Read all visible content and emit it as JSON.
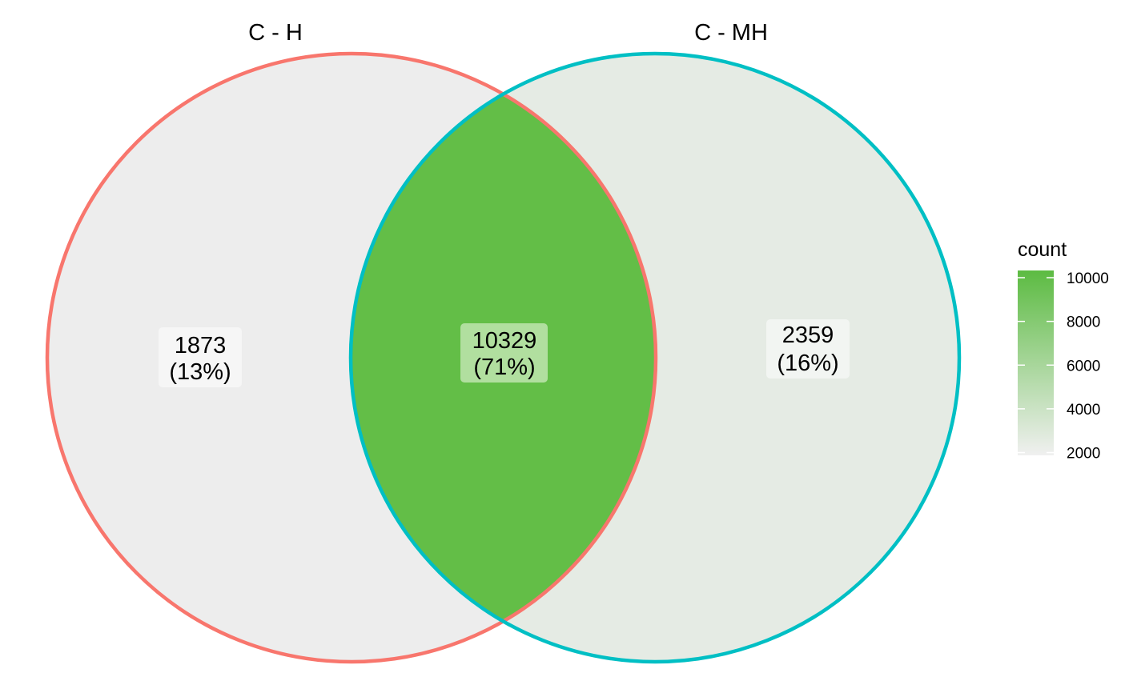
{
  "sets": [
    {
      "name": "C - H",
      "color": "#F8766D"
    },
    {
      "name": "C - MH",
      "color": "#00BFC4"
    }
  ],
  "regions": [
    {
      "id": "only-c-h",
      "count": "1873",
      "percent": "(13%)",
      "value": 1873,
      "fill": "#EDEDED"
    },
    {
      "id": "intersection",
      "count": "10329",
      "percent": "(71%)",
      "value": 10329,
      "fill": "#63BE47"
    },
    {
      "id": "only-c-mh",
      "count": "2359",
      "percent": "(16%)",
      "value": 2359,
      "fill": "#E5EBE4"
    }
  ],
  "legend": {
    "title": "count",
    "ticks": [
      "2000",
      "4000",
      "6000",
      "8000",
      "10000"
    ],
    "range": [
      1873,
      10329
    ],
    "color_low": "#F0F0F0",
    "color_high": "#5CBB42"
  }
}
